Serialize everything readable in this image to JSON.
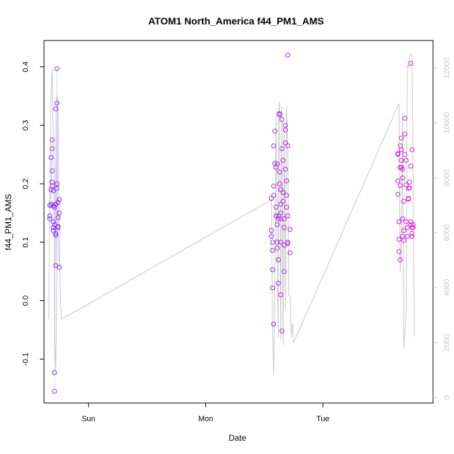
{
  "chart_data": {
    "type": "scatter",
    "title": "ATOM1 North_America f44_PM1_AMS",
    "xlabel": "Date",
    "ylabel": "f44_PM1_AMS",
    "x_ticks": [
      {
        "label": "Sun",
        "day": 0
      },
      {
        "label": "Mon",
        "day": 1
      },
      {
        "label": "Tue",
        "day": 2
      }
    ],
    "x_range_days": [
      -0.38,
      2.94
    ],
    "ylim": [
      -0.175,
      0.445
    ],
    "y_ticks": [
      -0.1,
      0.0,
      0.1,
      0.2,
      0.3,
      0.4
    ],
    "y2_range": [
      -200,
      13000
    ],
    "y2_ticks": [
      0,
      2000,
      4000,
      6000,
      8000,
      10000,
      12000
    ],
    "colors": {
      "axis": "#000000",
      "secondary_line": "#c8c8c8",
      "point_start": "#7b2cf5",
      "point_end": "#e41bd6"
    },
    "series": [
      {
        "name": "",
        "kind": "points",
        "points": [
          [
            -0.33,
            0.14
          ],
          [
            -0.33,
            0.145
          ],
          [
            -0.33,
            0.163
          ],
          [
            -0.32,
            0.19
          ],
          [
            -0.32,
            0.245
          ],
          [
            -0.32,
            0.165
          ],
          [
            -0.31,
            0.26
          ],
          [
            -0.31,
            0.275
          ],
          [
            -0.31,
            0.222
          ],
          [
            -0.31,
            0.203
          ],
          [
            -0.31,
            0.196
          ],
          [
            -0.3,
            0.188
          ],
          [
            -0.3,
            0.162
          ],
          [
            -0.3,
            0.135
          ],
          [
            -0.3,
            0.125
          ],
          [
            -0.3,
            0.12
          ],
          [
            -0.29,
            0.13
          ],
          [
            -0.29,
            0.16
          ],
          [
            -0.29,
            -0.123
          ],
          [
            -0.29,
            -0.155
          ],
          [
            -0.28,
            0.328
          ],
          [
            -0.28,
            0.115
          ],
          [
            -0.28,
            0.112
          ],
          [
            -0.28,
            0.06
          ],
          [
            -0.27,
            0.338
          ],
          [
            -0.27,
            0.2
          ],
          [
            -0.27,
            0.192
          ],
          [
            -0.27,
            0.397
          ],
          [
            -0.26,
            0.127
          ],
          [
            -0.26,
            0.142
          ],
          [
            -0.26,
            0.168
          ],
          [
            -0.25,
            0.173
          ],
          [
            -0.25,
            0.15
          ],
          [
            -0.25,
            0.057
          ],
          [
            -0.26,
            0.125
          ],
          [
            -0.28,
            0.165
          ],
          [
            1.56,
            0.175
          ],
          [
            1.56,
            0.11
          ],
          [
            1.56,
            0.12
          ],
          [
            1.57,
            0.1
          ],
          [
            1.57,
            0.086
          ],
          [
            1.57,
            0.053
          ],
          [
            1.57,
            0.022
          ],
          [
            1.58,
            -0.04
          ],
          [
            1.58,
            0.18
          ],
          [
            1.58,
            0.196
          ],
          [
            1.58,
            0.265
          ],
          [
            1.59,
            0.29
          ],
          [
            1.59,
            0.235
          ],
          [
            1.6,
            0.228
          ],
          [
            1.6,
            0.16
          ],
          [
            1.6,
            0.145
          ],
          [
            1.61,
            0.13
          ],
          [
            1.61,
            0.1
          ],
          [
            1.61,
            0.09
          ],
          [
            1.62,
            0.07
          ],
          [
            1.62,
            0.03
          ],
          [
            1.62,
            0.145
          ],
          [
            1.62,
            0.14
          ],
          [
            1.63,
            0.318
          ],
          [
            1.63,
            0.32
          ],
          [
            1.63,
            0.22
          ],
          [
            1.63,
            0.2
          ],
          [
            1.64,
            0.19
          ],
          [
            1.64,
            0.15
          ],
          [
            1.64,
            0.14
          ],
          [
            1.64,
            0.01
          ],
          [
            1.64,
            0.1
          ],
          [
            1.65,
            -0.052
          ],
          [
            1.65,
            0.31
          ],
          [
            1.65,
            0.26
          ],
          [
            1.66,
            0.24
          ],
          [
            1.66,
            0.185
          ],
          [
            1.66,
            0.17
          ],
          [
            1.67,
            0.14
          ],
          [
            1.67,
            0.125
          ],
          [
            1.67,
            0.095
          ],
          [
            1.67,
            0.05
          ],
          [
            1.68,
            0.3
          ],
          [
            1.68,
            0.292
          ],
          [
            1.68,
            0.27
          ],
          [
            1.68,
            0.225
          ],
          [
            1.69,
            0.205
          ],
          [
            1.69,
            0.18
          ],
          [
            1.69,
            0.16
          ],
          [
            1.7,
            0.145
          ],
          [
            1.7,
            0.265
          ],
          [
            1.7,
            0.1
          ],
          [
            1.7,
            0.098
          ],
          [
            1.7,
            0.42
          ],
          [
            1.72,
            0.122
          ],
          [
            1.72,
            0.082
          ],
          [
            1.61,
            0.234
          ],
          [
            1.64,
            0.165
          ],
          [
            2.64,
            0.25
          ],
          [
            2.64,
            0.252
          ],
          [
            2.64,
            0.205
          ],
          [
            2.64,
            0.182
          ],
          [
            2.65,
            0.135
          ],
          [
            2.65,
            0.105
          ],
          [
            2.65,
            0.084
          ],
          [
            2.66,
            0.265
          ],
          [
            2.66,
            0.228
          ],
          [
            2.66,
            0.197
          ],
          [
            2.66,
            0.07
          ],
          [
            2.67,
            0.278
          ],
          [
            2.67,
            0.258
          ],
          [
            2.67,
            0.24
          ],
          [
            2.67,
            0.228
          ],
          [
            2.68,
            0.225
          ],
          [
            2.68,
            0.21
          ],
          [
            2.68,
            0.14
          ],
          [
            2.68,
            0.11
          ],
          [
            2.69,
            0.103
          ],
          [
            2.69,
            0.17
          ],
          [
            2.69,
            0.12
          ],
          [
            2.7,
            0.312
          ],
          [
            2.7,
            0.285
          ],
          [
            2.7,
            0.25
          ],
          [
            2.71,
            0.24
          ],
          [
            2.71,
            0.198
          ],
          [
            2.71,
            0.135
          ],
          [
            2.72,
            0.125
          ],
          [
            2.72,
            0.11
          ],
          [
            2.73,
            0.192
          ],
          [
            2.73,
            0.175
          ],
          [
            2.73,
            0.174
          ],
          [
            2.74,
            0.203
          ],
          [
            2.74,
            0.193
          ],
          [
            2.75,
            0.23
          ],
          [
            2.75,
            0.135
          ],
          [
            2.75,
            0.13
          ],
          [
            2.75,
            0.406
          ],
          [
            2.76,
            0.258
          ],
          [
            2.76,
            0.125
          ],
          [
            2.76,
            0.115
          ],
          [
            2.76,
            0.11
          ],
          [
            2.77,
            0.125
          ],
          [
            2.77,
            0.13
          ]
        ]
      },
      {
        "name": "",
        "kind": "line",
        "axis": "right",
        "points": [
          [
            -0.34,
            2850
          ],
          [
            -0.33,
            7500
          ],
          [
            -0.32,
            11000
          ],
          [
            -0.31,
            12000
          ],
          [
            -0.3,
            9000
          ],
          [
            -0.29,
            8000
          ],
          [
            -0.29,
            2200
          ],
          [
            -0.28,
            1000
          ],
          [
            -0.27,
            4500
          ],
          [
            -0.27,
            11000
          ],
          [
            -0.26,
            10800
          ],
          [
            -0.25,
            6000
          ],
          [
            -0.24,
            3500
          ],
          [
            -0.23,
            2850
          ],
          [
            1.56,
            7200
          ],
          [
            1.57,
            2600
          ],
          [
            1.58,
            800
          ],
          [
            1.59,
            3800
          ],
          [
            1.6,
            10500
          ],
          [
            1.61,
            5200
          ],
          [
            1.62,
            2200
          ],
          [
            1.62,
            10000
          ],
          [
            1.63,
            10800
          ],
          [
            1.64,
            2100
          ],
          [
            1.65,
            10600
          ],
          [
            1.66,
            1900
          ],
          [
            1.67,
            9800
          ],
          [
            1.68,
            3200
          ],
          [
            1.69,
            10600
          ],
          [
            1.7,
            9000
          ],
          [
            1.71,
            3700
          ],
          [
            1.72,
            3700
          ],
          [
            1.73,
            2200
          ],
          [
            1.74,
            2700
          ],
          [
            1.75,
            2000
          ],
          [
            2.65,
            10700
          ],
          [
            2.65,
            10200
          ],
          [
            2.66,
            4600
          ],
          [
            2.67,
            5600
          ],
          [
            2.68,
            10400
          ],
          [
            2.69,
            1800
          ],
          [
            2.71,
            3000
          ],
          [
            2.72,
            12100
          ],
          [
            2.73,
            12000
          ],
          [
            2.74,
            12500
          ],
          [
            2.76,
            12500
          ],
          [
            2.77,
            8000
          ],
          [
            2.78,
            2200
          ]
        ]
      }
    ]
  }
}
